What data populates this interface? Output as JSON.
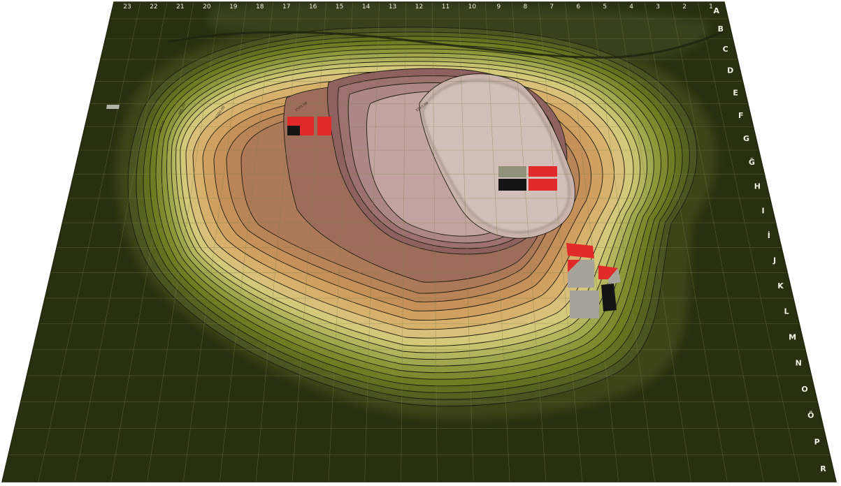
{
  "map": {
    "column_labels": [
      "23",
      "22",
      "21",
      "20",
      "19",
      "18",
      "17",
      "16",
      "15",
      "14",
      "13",
      "12",
      "11",
      "10",
      "9",
      "8",
      "7",
      "6",
      "5",
      "4",
      "3",
      "2",
      "1"
    ],
    "row_labels": [
      "A",
      "B",
      "C",
      "D",
      "E",
      "F",
      "G",
      "Ğ",
      "H",
      "I",
      "İ",
      "J",
      "K",
      "L",
      "M",
      "N",
      "O",
      "Ö",
      "P",
      "R"
    ],
    "contour_labels": [
      "1010.00",
      "1005.00",
      "1000.00",
      "995.00",
      "990.00"
    ],
    "colors": {
      "base": "#303716",
      "grid": "#6e7140",
      "contour_line": "#1c1a10",
      "marker_red": "#e12a2a",
      "marker_black": "#141414",
      "marker_gray": "#a7a29a",
      "marker_olive_gray": "#8f9278"
    }
  }
}
